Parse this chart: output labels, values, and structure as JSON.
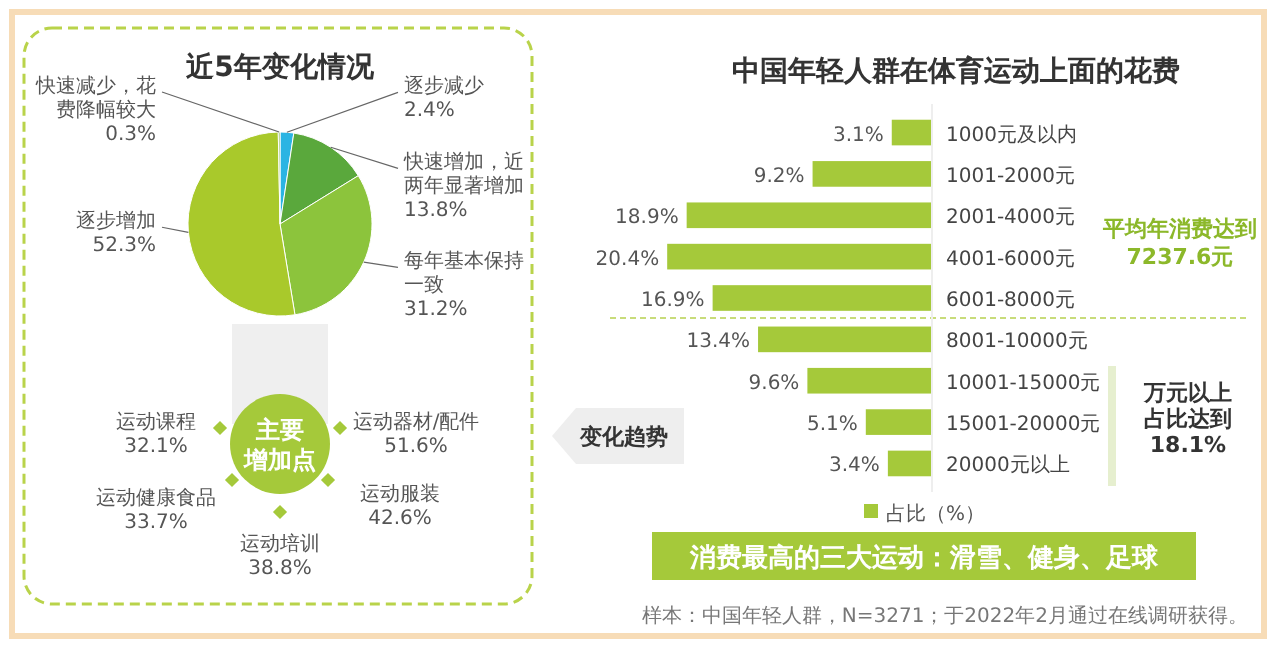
{
  "chart_data": [
    {
      "type": "bar",
      "orientation": "horizontal",
      "title": "中国年轻人群在体育运动上面的花费",
      "categories": [
        "1000元及以内",
        "1001-2000元",
        "2001-4000元",
        "4001-6000元",
        "6001-8000元",
        "8001-10000元",
        "10001-15000元",
        "15001-20000元",
        "20000元以上"
      ],
      "series": [
        {
          "name": "占比（%）",
          "color": "#a5c93a",
          "values": [
            3.1,
            9.2,
            18.9,
            20.4,
            16.9,
            13.4,
            9.6,
            5.1,
            3.4
          ],
          "value_labels": [
            "3.1%",
            "9.2%",
            "18.9%",
            "20.4%",
            "16.9%",
            "13.4%",
            "9.6%",
            "5.1%",
            "3.4%"
          ]
        }
      ],
      "tick_labels": "y",
      "legend": "bottom",
      "annotations": [
        "平均年消费达到7237.6元",
        "万元以上占比达到18.1%",
        "消费最高的三大运动：滑雪、健身、足球",
        "样本：中国年轻人群，N=3271；于2022年2月通过在线调研获得。"
      ]
    },
    {
      "type": "pie",
      "title": "近5年变化情况",
      "categories": [
        "逐步减少",
        "快速增加，近两年显著增加",
        "每年基本保持一致",
        "逐步增加",
        "快速减少，花费降幅较大"
      ],
      "values": [
        2.4,
        13.8,
        31.2,
        52.3,
        0.3
      ],
      "colors": [
        "#2ab4e3",
        "#5aa83c",
        "#8cc43c",
        "#a9c92b",
        "#7fb23a"
      ],
      "value_labels": [
        "2.4%",
        "13.8%",
        "31.2%",
        "52.3%",
        "0.3%"
      ]
    },
    {
      "type": "other",
      "title": "主要增加点",
      "categories": [
        "运动课程",
        "运动器材/配件",
        "运动健康食品",
        "运动服装",
        "运动培训"
      ],
      "value_labels": [
        "32.1%",
        "51.6%",
        "33.7%",
        "42.6%",
        "38.8%"
      ],
      "annotations": [
        "变化趋势"
      ]
    }
  ]
}
